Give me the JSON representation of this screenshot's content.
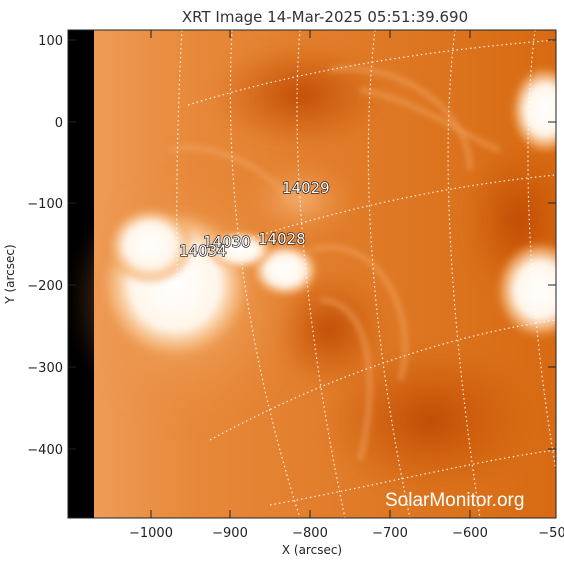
{
  "title": "XRT Image 14-Mar-2025 05:51:39.690",
  "xlabel": "X (arcsec)",
  "ylabel": "Y (arcsec)",
  "x_ticks": [
    "−1000",
    "−900",
    "−800",
    "−700",
    "−600",
    "−50"
  ],
  "y_ticks": [
    "100",
    "0",
    "−100",
    "−200",
    "−300",
    "−400"
  ],
  "active_regions": [
    "14029",
    "14030",
    "14028",
    "14034"
  ],
  "watermark": "SolarMonitor.org",
  "colors": {
    "disk_base": "#d96a10",
    "bright": "#ffffff",
    "dark_region": "#c44c05",
    "off_limb": "#000000"
  }
}
